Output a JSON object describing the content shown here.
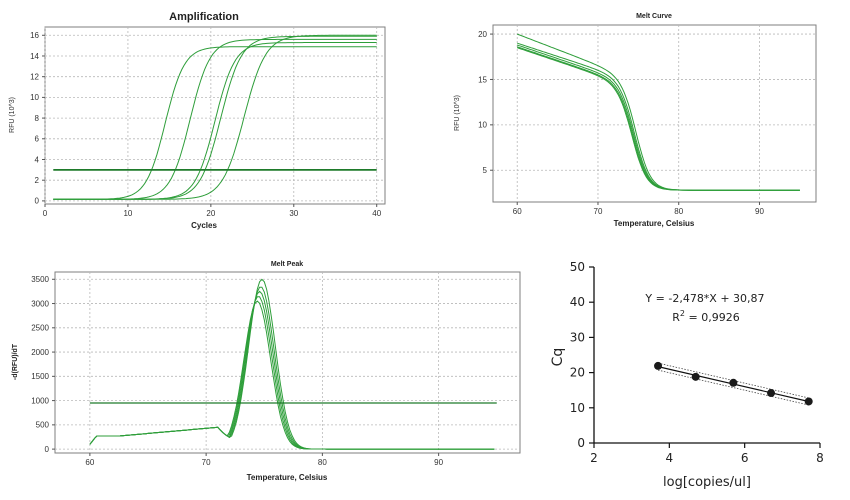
{
  "colors": {
    "green": "#2e9e3a",
    "dark_green": "#1e7a2a",
    "grid": "#b8b8b8",
    "frame": "#7f7f7f",
    "marker": "#1a1a1a"
  },
  "chart_data": [
    {
      "id": "amplification",
      "type": "line",
      "title": "Amplification",
      "xlabel": "Cycles",
      "ylabel": "RFU (10^3)",
      "xlim": [
        0,
        41
      ],
      "ylim": [
        -0.3,
        16.8
      ],
      "xticks": [
        0,
        10,
        20,
        30,
        40
      ],
      "yticks": [
        0,
        2,
        4,
        6,
        8,
        10,
        12,
        14,
        16
      ],
      "grid": true,
      "threshold": 3.0,
      "series": [
        {
          "baseline": 0.15,
          "plateau": 14.9,
          "midpoint": 14.5,
          "slope": 1.15
        },
        {
          "baseline": 0.15,
          "plateau": 15.6,
          "midpoint": 17.5,
          "slope": 1.2
        },
        {
          "baseline": 0.15,
          "plateau": 15.3,
          "midpoint": 20.5,
          "slope": 1.2
        },
        {
          "baseline": 0.15,
          "plateau": 15.9,
          "midpoint": 21.2,
          "slope": 1.25
        },
        {
          "baseline": 0.15,
          "plateau": 16.0,
          "midpoint": 24.0,
          "slope": 1.3
        }
      ]
    },
    {
      "id": "melt-curve",
      "type": "line",
      "title": "Melt Curve",
      "xlabel": "Temperature, Celsius",
      "ylabel": "RFU (10^3)",
      "xlim": [
        57,
        97
      ],
      "ylim": [
        1.5,
        21
      ],
      "xticks": [
        60,
        70,
        80,
        90
      ],
      "yticks": [
        5,
        10,
        15,
        20
      ],
      "grid": true,
      "series": [
        {
          "start": 20.0,
          "pre": 15.9,
          "floor": 2.8,
          "tm": 74.8
        },
        {
          "start": 19.0,
          "pre": 15.5,
          "floor": 2.8,
          "tm": 74.6
        },
        {
          "start": 18.8,
          "pre": 15.2,
          "floor": 2.8,
          "tm": 74.5
        },
        {
          "start": 18.6,
          "pre": 15.0,
          "floor": 2.8,
          "tm": 74.4
        },
        {
          "start": 18.5,
          "pre": 14.9,
          "floor": 2.8,
          "tm": 74.3
        }
      ]
    },
    {
      "id": "melt-peak",
      "type": "line",
      "title": "Melt Peak",
      "xlabel": "Temperature, Celsius",
      "ylabel": "-d(RFU)/dT",
      "xlim": [
        57,
        97
      ],
      "ylim": [
        -80,
        3650
      ],
      "xticks": [
        60,
        70,
        80,
        90
      ],
      "yticks": [
        0,
        500,
        1000,
        1500,
        2000,
        2500,
        3000,
        3500
      ],
      "grid": true,
      "threshold": 950,
      "series": [
        {
          "peak": 3500,
          "tm": 74.8
        },
        {
          "peak": 3350,
          "tm": 74.7
        },
        {
          "peak": 3250,
          "tm": 74.6
        },
        {
          "peak": 3150,
          "tm": 74.5
        },
        {
          "peak": 3050,
          "tm": 74.4
        }
      ]
    },
    {
      "id": "standard-curve",
      "type": "scatter",
      "xlabel": "log[copies/ul]",
      "ylabel": "Cq",
      "xlim": [
        2,
        8
      ],
      "ylim": [
        0,
        50
      ],
      "xticks": [
        2,
        4,
        6,
        8
      ],
      "yticks": [
        0,
        10,
        20,
        30,
        40,
        50
      ],
      "grid": false,
      "points": [
        {
          "x": 3.7,
          "y": 21.9
        },
        {
          "x": 4.7,
          "y": 18.8
        },
        {
          "x": 5.7,
          "y": 17.1
        },
        {
          "x": 6.7,
          "y": 14.2
        },
        {
          "x": 7.7,
          "y": 11.8
        }
      ],
      "fit": {
        "slope": -2.478,
        "intercept": 30.87,
        "x_range": [
          3.7,
          7.7
        ]
      },
      "equation": "Y = -2,478*X + 30,87",
      "r2_label": "R",
      "r2_sup": "2",
      "r2_value": " = 0,9926"
    }
  ]
}
